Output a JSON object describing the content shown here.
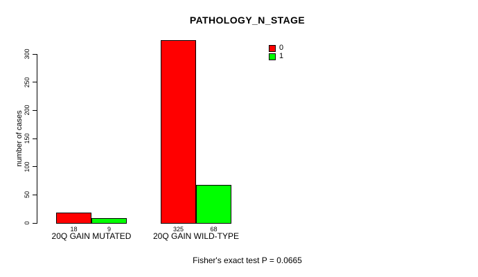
{
  "chart_data": {
    "type": "bar",
    "title": "PATHOLOGY_N_STAGE",
    "ylabel": "number of cases",
    "xlabel": "",
    "ylim": [
      0,
      300
    ],
    "yticks": [
      0,
      50,
      100,
      150,
      200,
      250,
      300
    ],
    "grid": false,
    "legend_position": "top-right",
    "categories": [
      "20Q GAIN MUTATED",
      "20Q GAIN WILD-TYPE"
    ],
    "series": [
      {
        "name": "0",
        "color": "#FF0000",
        "values": [
          18,
          325
        ]
      },
      {
        "name": "1",
        "color": "#00FF00",
        "values": [
          9,
          68
        ]
      }
    ],
    "annotation": "Fisher's exact test P = 0.0665"
  }
}
